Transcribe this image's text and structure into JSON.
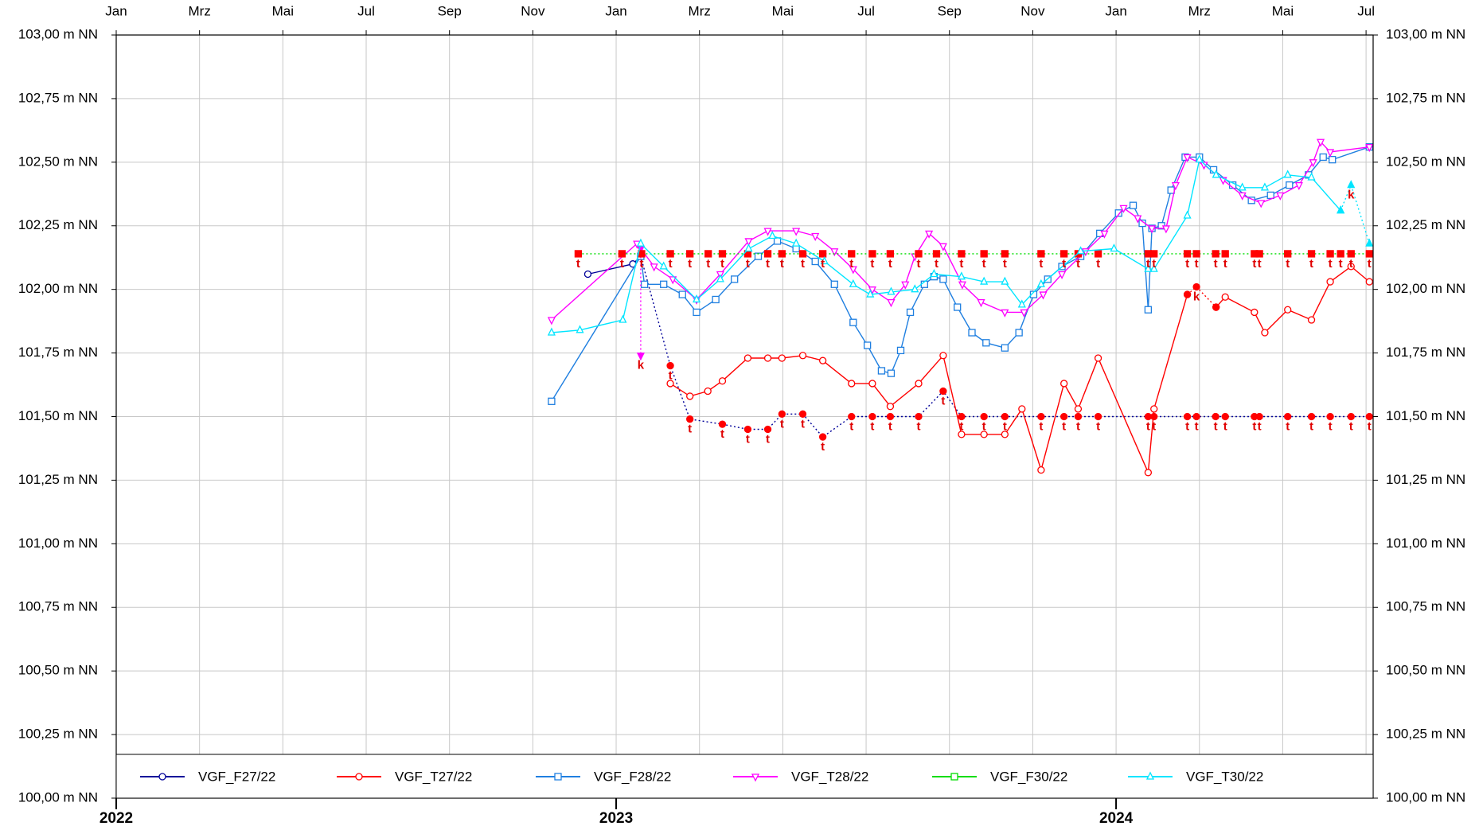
{
  "chart_data": {
    "type": "line",
    "xlim": [
      0,
      30.17
    ],
    "xticks": [
      {
        "value": 0,
        "label": "Jan"
      },
      {
        "value": 2,
        "label": "Mrz"
      },
      {
        "value": 4,
        "label": "Mai"
      },
      {
        "value": 6,
        "label": "Jul"
      },
      {
        "value": 8,
        "label": "Sep"
      },
      {
        "value": 10,
        "label": "Nov"
      },
      {
        "value": 12,
        "label": "Jan"
      },
      {
        "value": 14,
        "label": "Mrz"
      },
      {
        "value": 16,
        "label": "Mai"
      },
      {
        "value": 18,
        "label": "Jul"
      },
      {
        "value": 20,
        "label": "Sep"
      },
      {
        "value": 22,
        "label": "Nov"
      },
      {
        "value": 24,
        "label": "Jan"
      },
      {
        "value": 26,
        "label": "Mrz"
      },
      {
        "value": 28,
        "label": "Mai"
      },
      {
        "value": 30,
        "label": "Jul"
      }
    ],
    "year_ticks": [
      {
        "value": 0,
        "label": "2022"
      },
      {
        "value": 12,
        "label": "2023"
      },
      {
        "value": 24,
        "label": "2024"
      }
    ],
    "ylim": [
      100,
      103
    ],
    "yticks": [
      {
        "value": 100,
        "label": "100,00 m NN"
      },
      {
        "value": 100.25,
        "label": "100,25 m NN"
      },
      {
        "value": 100.5,
        "label": "100,50 m NN"
      },
      {
        "value": 100.75,
        "label": "100,75 m NN"
      },
      {
        "value": 101,
        "label": "101,00 m NN"
      },
      {
        "value": 101.25,
        "label": "101,25 m NN"
      },
      {
        "value": 101.5,
        "label": "101,50 m NN"
      },
      {
        "value": 101.75,
        "label": "101,75 m NN"
      },
      {
        "value": 102,
        "label": "102,00 m NN"
      },
      {
        "value": 102.25,
        "label": "102,25 m NN"
      },
      {
        "value": 102.5,
        "label": "102,50 m NN"
      },
      {
        "value": 102.75,
        "label": "102,75 m NN"
      },
      {
        "value": 103,
        "label": "103,00 m NN"
      }
    ],
    "grid": true,
    "legend": "bottom",
    "series": [
      {
        "name": "VGF_F27/22",
        "color": "#000099",
        "marker": "circle",
        "x": [
          11.32,
          12.4,
          12.59
        ],
        "values": [
          102.06,
          102.1,
          102.13
        ],
        "flags": {
          "color": "#ff0000",
          "x": [
            12.59,
            13.3,
            13.77,
            14.55,
            15.16,
            15.64,
            15.98,
            16.48,
            16.96,
            17.65,
            18.15,
            18.58,
            19.26,
            19.85,
            20.29,
            20.83,
            21.33,
            22.2,
            22.75,
            23.09,
            23.57,
            24.77,
            24.91,
            25.71,
            25.93,
            26.39,
            26.62,
            27.32,
            27.44,
            28.12,
            28.69,
            29.14,
            29.64,
            30.08
          ],
          "values": [
            102.13,
            101.7,
            101.49,
            101.47,
            101.45,
            101.45,
            101.51,
            101.51,
            101.42,
            101.5,
            101.5,
            101.5,
            101.5,
            101.6,
            101.5,
            101.5,
            101.5,
            101.5,
            101.5,
            101.5,
            101.5,
            101.5,
            101.5,
            101.5,
            101.5,
            101.5,
            101.5,
            101.5,
            101.5,
            101.5,
            101.5,
            101.5,
            101.5,
            101.5
          ],
          "labels": [
            null,
            "t",
            "t",
            "t",
            "t",
            "t",
            "t",
            "t",
            "t",
            "t",
            "t",
            "t",
            "t",
            "t",
            "t",
            "t",
            "t",
            "t",
            "t",
            "t",
            "t",
            "t",
            "t",
            "t",
            "t",
            "t",
            "t",
            "t",
            "t",
            "t",
            "t",
            "t",
            "t",
            "t"
          ]
        }
      },
      {
        "name": "VGF_T27/22",
        "color": "#ff0000",
        "marker": "circle",
        "x": [
          13.3,
          13.77,
          14.2,
          14.55,
          15.16,
          15.64,
          15.98,
          16.48,
          16.96,
          17.65,
          18.15,
          18.58,
          19.26,
          19.85,
          20.29,
          20.83,
          21.33,
          21.74,
          22.2,
          22.75,
          23.09,
          23.57,
          24.77,
          24.91,
          25.71,
          null,
          26.4,
          26.62,
          27.32,
          27.57,
          28.12,
          28.69,
          29.14,
          29.64,
          30.08
        ],
        "values": [
          101.63,
          101.58,
          101.6,
          101.64,
          101.73,
          101.73,
          101.73,
          101.74,
          101.72,
          101.63,
          101.63,
          101.54,
          101.63,
          101.74,
          101.43,
          101.43,
          101.43,
          101.53,
          101.29,
          101.63,
          101.53,
          101.73,
          101.28,
          101.53,
          101.98,
          null,
          101.93,
          101.97,
          101.91,
          101.83,
          101.92,
          101.88,
          102.03,
          102.09,
          102.03
        ],
        "flags": {
          "color": "#ff0000",
          "x": [
            25.71,
            25.93,
            26.4
          ],
          "values": [
            101.98,
            102.01,
            101.93
          ],
          "labels": [
            null,
            "k",
            null
          ]
        }
      },
      {
        "name": "VGF_F28/22",
        "color": "#1f7fe0",
        "marker": "square",
        "x": [
          10.45,
          12.59,
          12.68,
          13.14,
          13.59,
          13.93,
          14.39,
          14.84,
          15.41,
          15.87,
          16.32,
          16.78,
          17.24,
          17.69,
          18.03,
          18.37,
          18.6,
          18.83,
          19.06,
          19.4,
          19.63,
          19.85,
          20.19,
          20.54,
          20.88,
          21.33,
          21.67,
          22.02,
          22.36,
          22.7,
          23.15,
          23.61,
          24.06,
          24.41,
          24.63,
          24.77,
          24.86,
          25.09,
          25.32,
          25.66,
          26.0,
          26.34,
          26.8,
          27.25,
          27.71,
          28.16,
          28.62,
          28.97,
          29.19,
          30.08
        ],
        "values": [
          101.56,
          102.13,
          102.02,
          102.02,
          101.98,
          101.91,
          101.96,
          102.04,
          102.13,
          102.19,
          102.16,
          102.11,
          102.02,
          101.87,
          101.78,
          101.68,
          101.67,
          101.76,
          101.91,
          102.02,
          102.05,
          102.04,
          101.93,
          101.83,
          101.79,
          101.77,
          101.83,
          101.98,
          102.04,
          102.09,
          102.13,
          102.22,
          102.3,
          102.33,
          102.26,
          101.92,
          102.24,
          102.25,
          102.39,
          102.52,
          102.52,
          102.47,
          102.41,
          102.35,
          102.37,
          102.41,
          102.45,
          102.52,
          102.51,
          102.56
        ]
      },
      {
        "name": "VGF_T28/22",
        "color": "#ff00ff",
        "marker": "triangle-down",
        "x": [
          10.45,
          12.5,
          12.91,
          13.36,
          13.93,
          14.5,
          15.18,
          15.64,
          16.32,
          16.78,
          17.24,
          17.69,
          18.15,
          18.6,
          18.94,
          19.17,
          19.51,
          19.85,
          20.31,
          20.76,
          21.33,
          21.79,
          22.25,
          22.7,
          23.27,
          23.72,
          24.18,
          24.52,
          24.86,
          25.2,
          25.43,
          25.71,
          26.11,
          26.57,
          27.03,
          27.48,
          27.94,
          28.39,
          28.73,
          28.91,
          29.14,
          30.08
        ],
        "values": [
          101.88,
          102.18,
          102.09,
          102.04,
          101.96,
          102.06,
          102.19,
          102.23,
          102.23,
          102.21,
          102.15,
          102.08,
          102.0,
          101.95,
          102.02,
          102.13,
          102.22,
          102.17,
          102.02,
          101.95,
          101.91,
          101.91,
          101.98,
          102.06,
          102.15,
          102.22,
          102.32,
          102.28,
          102.24,
          102.24,
          102.41,
          102.52,
          102.49,
          102.43,
          102.37,
          102.34,
          102.37,
          102.41,
          102.5,
          102.58,
          102.54,
          102.56
        ],
        "flags": {
          "color": "#ff00ff",
          "x": [
            12.59,
            12.59
          ],
          "values": [
            102.16,
            101.74
          ],
          "labels": [
            null,
            "k"
          ]
        }
      },
      {
        "name": "VGF_F30/22",
        "color": "#00dd00",
        "marker": "square",
        "line_style": "dotted",
        "point_color": "#ff0000",
        "x": [
          11.09,
          12.14,
          12.61,
          13.3,
          13.77,
          14.21,
          14.55,
          15.16,
          15.64,
          15.98,
          16.48,
          16.96,
          17.65,
          18.15,
          18.58,
          19.26,
          19.69,
          20.29,
          20.83,
          21.33,
          22.2,
          22.75,
          23.09,
          23.57,
          24.77,
          24.91,
          25.71,
          25.93,
          26.39,
          26.62,
          27.32,
          27.44,
          28.12,
          28.69,
          29.14,
          29.39,
          29.64,
          30.08
        ],
        "values": [
          102.14,
          102.14,
          102.14,
          102.14,
          102.14,
          102.14,
          102.14,
          102.14,
          102.14,
          102.14,
          102.14,
          102.14,
          102.14,
          102.14,
          102.14,
          102.14,
          102.14,
          102.14,
          102.14,
          102.14,
          102.14,
          102.14,
          102.14,
          102.14,
          102.14,
          102.14,
          102.14,
          102.14,
          102.14,
          102.14,
          102.14,
          102.14,
          102.14,
          102.14,
          102.14,
          102.14,
          102.14,
          102.14
        ],
        "point_labels": [
          "t",
          "t",
          "t",
          "t",
          "t",
          "t",
          "t",
          "t",
          "t",
          "t",
          "t",
          "t",
          "t",
          "t",
          "t",
          "t",
          "t",
          "t",
          "t",
          "t",
          "t",
          "t",
          "t",
          "t",
          "t",
          "t",
          "t",
          "t",
          "t",
          "t",
          "t",
          "t",
          "t",
          "t",
          "t",
          "t",
          "t",
          "t"
        ]
      },
      {
        "name": "VGF_T30/22",
        "color": "#00e5ff",
        "marker": "triangle",
        "x": [
          10.45,
          11.13,
          12.16,
          12.59,
          13.14,
          13.93,
          14.5,
          15.18,
          15.75,
          16.32,
          17.0,
          17.69,
          18.1,
          18.6,
          19.17,
          19.63,
          20.29,
          20.83,
          21.33,
          21.74,
          22.2,
          23.15,
          23.95,
          24.77,
          24.91,
          25.71,
          26.0,
          26.4,
          27.03,
          27.57,
          28.12,
          28.69,
          29.39
        ],
        "values": [
          101.83,
          101.84,
          101.88,
          102.18,
          102.09,
          101.96,
          102.04,
          102.16,
          102.21,
          102.18,
          102.11,
          102.02,
          101.98,
          101.99,
          102.0,
          102.06,
          102.05,
          102.03,
          102.03,
          101.94,
          102.02,
          102.15,
          102.16,
          102.08,
          102.08,
          102.29,
          102.51,
          102.45,
          102.4,
          102.4,
          102.45,
          102.44,
          102.31
        ],
        "flags": {
          "color": "#00e5ff",
          "x": [
            29.39,
            29.64,
            30.08
          ],
          "values": [
            102.31,
            102.41,
            102.18
          ],
          "labels": [
            null,
            "k",
            null
          ]
        }
      }
    ]
  }
}
